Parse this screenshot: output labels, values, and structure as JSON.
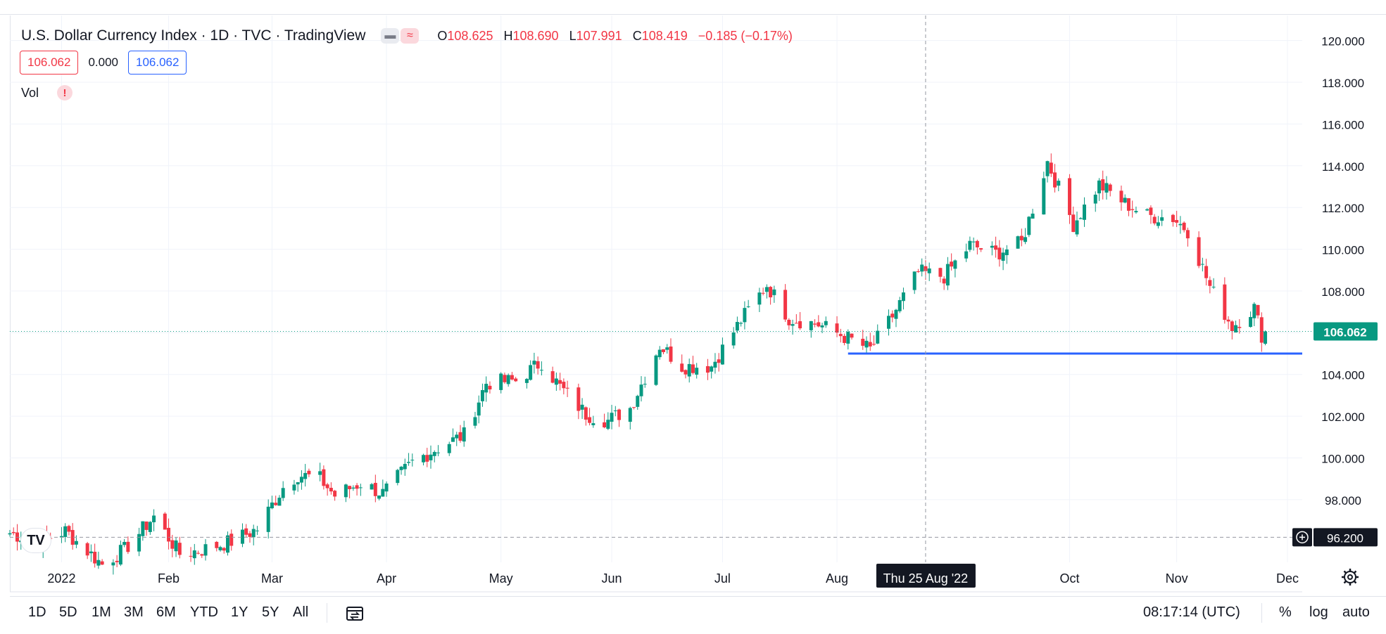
{
  "legend": {
    "title": "U.S. Dollar Currency Index · 1D · TVC · TradingView",
    "ohlc": [
      {
        "k": "O",
        "v": "108.625"
      },
      {
        "k": "H",
        "v": "108.690"
      },
      {
        "k": "L",
        "v": "107.991"
      },
      {
        "k": "C",
        "v": "108.419"
      }
    ],
    "change": "−0.185 (−0.17%)"
  },
  "value_row": {
    "left": "106.062",
    "mid": "0.000",
    "right": "106.062"
  },
  "vol": {
    "label": "Vol",
    "warning": "!"
  },
  "logo": "TV",
  "colors": {
    "up": "#089981",
    "down": "#f23645",
    "line": "#2962ff",
    "last_price": "#089981",
    "crosshair": "#131722"
  },
  "chart_data": {
    "type": "candlestick",
    "symbol": "U.S. Dollar Currency Index",
    "interval": "1D",
    "y_axis": {
      "ticks": [
        "98.000",
        "100.000",
        "102.000",
        "104.000",
        "106.000",
        "108.000",
        "110.000",
        "112.000",
        "114.000",
        "116.000",
        "118.000",
        "120.000"
      ],
      "ylim": [
        95.0,
        121.2
      ],
      "position": "right"
    },
    "x_axis": {
      "labels": [
        {
          "t": "2022",
          "date": "2022-01-03"
        },
        {
          "t": "Feb",
          "date": "2022-02-01"
        },
        {
          "t": "Mar",
          "date": "2022-03-01"
        },
        {
          "t": "Apr",
          "date": "2022-04-01"
        },
        {
          "t": "May",
          "date": "2022-05-02"
        },
        {
          "t": "Jun",
          "date": "2022-06-01"
        },
        {
          "t": "Jul",
          "date": "2022-07-01"
        },
        {
          "t": "Aug",
          "date": "2022-08-01"
        },
        {
          "t": "Oct",
          "date": "2022-10-03"
        },
        {
          "t": "Nov",
          "date": "2022-11-01"
        },
        {
          "t": "Dec",
          "date": "2022-12-01"
        }
      ],
      "range": [
        "2021-12-20",
        "2022-12-05"
      ]
    },
    "closes": [
      {
        "date": "2021-12-20",
        "close": 96.4
      },
      {
        "date": "2021-12-28",
        "close": 96.0
      },
      {
        "date": "2022-01-04",
        "close": 96.5
      },
      {
        "date": "2022-01-14",
        "close": 94.9
      },
      {
        "date": "2022-01-20",
        "close": 95.6
      },
      {
        "date": "2022-01-28",
        "close": 97.2
      },
      {
        "date": "2022-02-04",
        "close": 95.4
      },
      {
        "date": "2022-02-10",
        "close": 95.6
      },
      {
        "date": "2022-02-18",
        "close": 96.0
      },
      {
        "date": "2022-02-25",
        "close": 96.6
      },
      {
        "date": "2022-03-04",
        "close": 98.6
      },
      {
        "date": "2022-03-08",
        "close": 99.2
      },
      {
        "date": "2022-03-14",
        "close": 99.0
      },
      {
        "date": "2022-03-18",
        "close": 98.2
      },
      {
        "date": "2022-03-25",
        "close": 98.8
      },
      {
        "date": "2022-03-31",
        "close": 98.3
      },
      {
        "date": "2022-04-08",
        "close": 99.8
      },
      {
        "date": "2022-04-14",
        "close": 100.4
      },
      {
        "date": "2022-04-22",
        "close": 101.1
      },
      {
        "date": "2022-04-28",
        "close": 103.6
      },
      {
        "date": "2022-05-06",
        "close": 103.7
      },
      {
        "date": "2022-05-13",
        "close": 104.6
      },
      {
        "date": "2022-05-18",
        "close": 103.4
      },
      {
        "date": "2022-05-25",
        "close": 102.1
      },
      {
        "date": "2022-05-31",
        "close": 101.8
      },
      {
        "date": "2022-06-06",
        "close": 102.4
      },
      {
        "date": "2022-06-14",
        "close": 105.4
      },
      {
        "date": "2022-06-20",
        "close": 104.4
      },
      {
        "date": "2022-06-28",
        "close": 104.4
      },
      {
        "date": "2022-07-06",
        "close": 106.6
      },
      {
        "date": "2022-07-13",
        "close": 108.3
      },
      {
        "date": "2022-07-19",
        "close": 106.7
      },
      {
        "date": "2022-07-27",
        "close": 106.4
      },
      {
        "date": "2022-08-02",
        "close": 105.9
      },
      {
        "date": "2022-08-10",
        "close": 105.2
      },
      {
        "date": "2022-08-15",
        "close": 106.5
      },
      {
        "date": "2022-08-23",
        "close": 108.9
      },
      {
        "date": "2022-08-30",
        "close": 108.7
      },
      {
        "date": "2022-09-06",
        "close": 110.2
      },
      {
        "date": "2022-09-13",
        "close": 109.8
      },
      {
        "date": "2022-09-20",
        "close": 110.3
      },
      {
        "date": "2022-09-27",
        "close": 114.2
      },
      {
        "date": "2022-10-04",
        "close": 111.2
      },
      {
        "date": "2022-10-11",
        "close": 113.1
      },
      {
        "date": "2022-10-18",
        "close": 112.2
      },
      {
        "date": "2022-10-24",
        "close": 111.6
      },
      {
        "date": "2022-10-31",
        "close": 111.5
      },
      {
        "date": "2022-11-04",
        "close": 110.9
      },
      {
        "date": "2022-11-10",
        "close": 108.2
      },
      {
        "date": "2022-11-16",
        "close": 106.3
      },
      {
        "date": "2022-11-22",
        "close": 107.2
      },
      {
        "date": "2022-11-24",
        "close": 105.9
      },
      {
        "date": "2022-11-25",
        "close": 106.062
      }
    ],
    "last_price": "106.062",
    "crosshair_price": "96.200",
    "crosshair_date": "Thu 25 Aug '22",
    "horizontal_line": {
      "from": "2022-08-04",
      "to": "2022-12-05",
      "value": 105.0
    }
  },
  "bottom": {
    "timeframes": [
      "1D",
      "5D",
      "1M",
      "3M",
      "6M",
      "YTD",
      "1Y",
      "5Y",
      "All"
    ],
    "clock": "08:17:14 (UTC)",
    "pct": "%",
    "log": "log",
    "auto": "auto"
  }
}
